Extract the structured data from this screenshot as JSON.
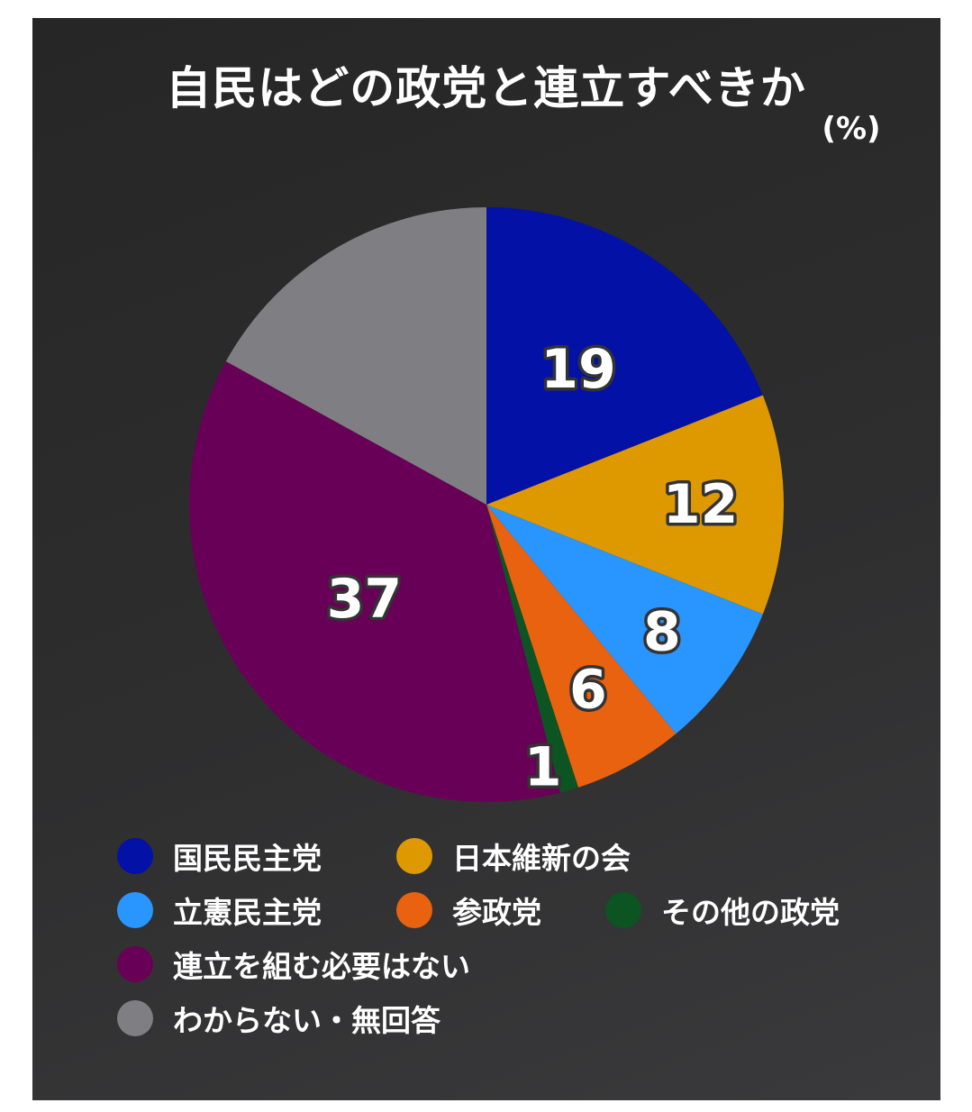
{
  "title": "自民はどの政党と連立すべきか",
  "unit": "(%)",
  "colors": {
    "background": "#2d2d2e",
    "text": "#ffffff"
  },
  "chart_data": {
    "type": "pie",
    "title": "自民はどの政党と連立すべきか",
    "unit": "%",
    "start_angle_deg": 0,
    "direction": "clockwise",
    "slices": [
      {
        "label": "国民民主党",
        "value": 19,
        "color": "#0311a6",
        "value_label": "19"
      },
      {
        "label": "日本維新の会",
        "value": 12,
        "color": "#df9900",
        "value_label": "12"
      },
      {
        "label": "立憲民主党",
        "value": 8,
        "color": "#2995ff",
        "value_label": "8"
      },
      {
        "label": "参政党",
        "value": 6,
        "color": "#e8620f",
        "value_label": "6"
      },
      {
        "label": "その他の政党",
        "value": 1,
        "color": "#0c5421",
        "value_label": "1"
      },
      {
        "label": "連立を組む必要はない",
        "value": 37,
        "color": "#690057",
        "value_label": "37"
      },
      {
        "label": "わからない・無回答",
        "value": 17,
        "color": "#7f7e82",
        "value_label": ""
      }
    ]
  }
}
